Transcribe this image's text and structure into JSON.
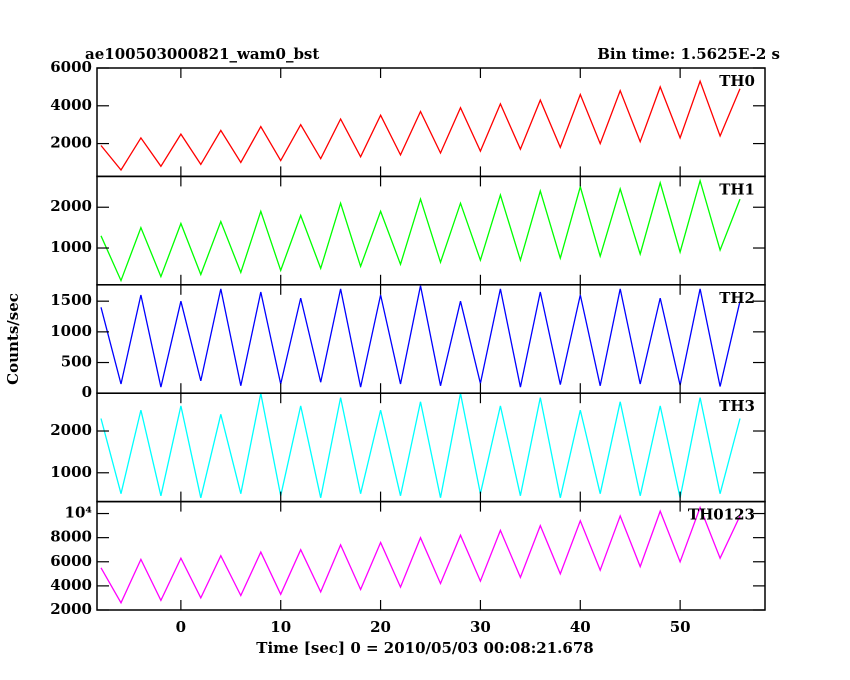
{
  "chart_data": {
    "type": "line",
    "title": "ae100503000821_wam0_bst",
    "subtitle": "Bin time: 1.5625E-2 s",
    "xlabel": "Time [sec] 0 = 2010/05/03 00:08:21.678",
    "ylabel": "Counts/sec",
    "x": [
      -8,
      -6,
      -4,
      -2,
      0,
      2,
      4,
      6,
      8,
      10,
      12,
      14,
      16,
      18,
      20,
      22,
      24,
      26,
      28,
      30,
      32,
      34,
      36,
      38,
      40,
      42,
      44,
      46,
      48,
      50,
      52,
      54,
      56
    ],
    "xlim": [
      -8.4,
      58.5
    ],
    "xticks": [
      0,
      10,
      20,
      30,
      40,
      50
    ],
    "series": [
      {
        "name": "TH0",
        "color": "#ff0000",
        "ylim": [
          263,
          6000
        ],
        "yticks": [
          2000,
          4000,
          6000
        ],
        "values": [
          1900,
          600,
          2300,
          800,
          2500,
          900,
          2700,
          1000,
          2900,
          1100,
          3000,
          1200,
          3300,
          1300,
          3500,
          1400,
          3700,
          1500,
          3900,
          1600,
          4100,
          1700,
          4300,
          1800,
          4600,
          2000,
          4800,
          2100,
          5000,
          2300,
          5300,
          2400,
          4900
        ]
      },
      {
        "name": "TH1",
        "color": "#00ff00",
        "ylim": [
          98,
          2756
        ],
        "yticks": [
          1000,
          2000
        ],
        "values": [
          1300,
          200,
          1500,
          300,
          1600,
          350,
          1650,
          400,
          1900,
          450,
          1800,
          500,
          2100,
          550,
          1900,
          600,
          2200,
          650,
          2100,
          700,
          2300,
          700,
          2400,
          750,
          2500,
          800,
          2450,
          850,
          2600,
          900,
          2650,
          950,
          2200
        ]
      },
      {
        "name": "TH2",
        "color": "#0000ff",
        "ylim": [
          0,
          1767
        ],
        "yticks": [
          0,
          500,
          1000,
          1500
        ],
        "values": [
          1400,
          150,
          1600,
          100,
          1500,
          200,
          1700,
          120,
          1650,
          150,
          1550,
          180,
          1700,
          100,
          1600,
          150,
          1750,
          120,
          1500,
          160,
          1700,
          100,
          1650,
          140,
          1600,
          120,
          1700,
          150,
          1550,
          130,
          1700,
          110,
          1500
        ]
      },
      {
        "name": "TH3",
        "color": "#00ffff",
        "ylim": [
          310,
          2905
        ],
        "yticks": [
          1000,
          2000
        ],
        "values": [
          2300,
          500,
          2500,
          450,
          2600,
          400,
          2400,
          500,
          2900,
          450,
          2600,
          400,
          2800,
          500,
          2500,
          450,
          2700,
          400,
          2900,
          500,
          2600,
          450,
          2800,
          400,
          2500,
          500,
          2700,
          450,
          2600,
          400,
          2800,
          500,
          2300
        ]
      },
      {
        "name": "TH0123",
        "color": "#ff00ff",
        "ylim": [
          2000,
          10990
        ],
        "yticks": [
          2000,
          4000,
          6000,
          8000,
          {
            "value": 10000,
            "label": "10⁴"
          }
        ],
        "values": [
          5500,
          2600,
          6200,
          2800,
          6300,
          3000,
          6500,
          3200,
          6800,
          3300,
          7000,
          3500,
          7400,
          3700,
          7600,
          3900,
          8000,
          4200,
          8200,
          4400,
          8600,
          4700,
          9000,
          5000,
          9400,
          5300,
          9800,
          5600,
          10200,
          6000,
          10500,
          6300,
          9800
        ]
      }
    ]
  }
}
